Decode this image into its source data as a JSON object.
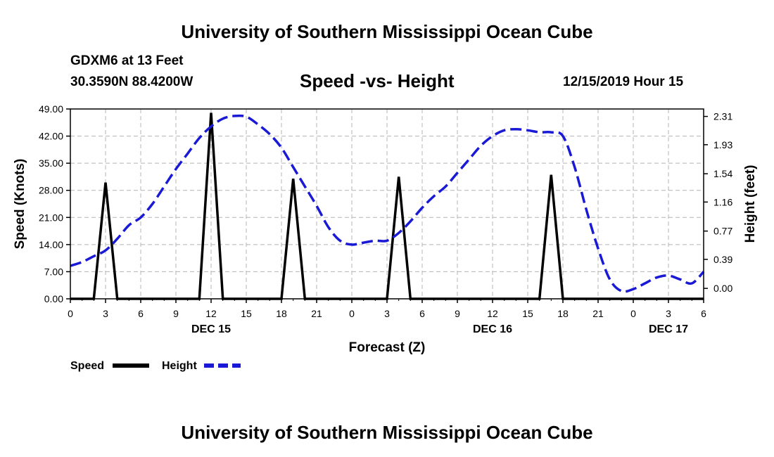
{
  "header": {
    "title": "University of Southern Mississippi Ocean Cube",
    "station": "GDXM6 at 13 Feet",
    "coords": "30.3590N 88.4200W",
    "chart_title": "Speed -vs- Height",
    "date_label": "12/15/2019 Hour 15"
  },
  "footer": {
    "title": "University of Southern Mississippi Ocean Cube"
  },
  "colors": {
    "speed": "#000000",
    "height": "#1a1ad6",
    "grid": "#b4b4b4"
  },
  "chart_data": {
    "type": "line",
    "title": "Speed -vs- Height",
    "xlabel": "Forecast (Z)",
    "ylabel": "Speed (Knots)",
    "ylabel_right": "Height (feet)",
    "xlim": [
      0,
      54
    ],
    "ylim": [
      0,
      49
    ],
    "ylim_right": [
      -0.14,
      2.41
    ],
    "x_ticks": [
      0,
      3,
      6,
      9,
      12,
      15,
      18,
      21,
      24,
      27,
      30,
      33,
      36,
      39,
      42,
      45,
      48,
      51,
      54
    ],
    "x_tick_labels": [
      "0",
      "3",
      "6",
      "9",
      "12",
      "15",
      "18",
      "21",
      "0",
      "3",
      "6",
      "9",
      "12",
      "15",
      "18",
      "21",
      "0",
      "3",
      "6"
    ],
    "day_labels": [
      {
        "x": 12,
        "label": "DEC 15"
      },
      {
        "x": 36,
        "label": "DEC 16"
      },
      {
        "x": 51,
        "label": "DEC 17"
      }
    ],
    "y_ticks": [
      0,
      7,
      14,
      21,
      28,
      35,
      42,
      49
    ],
    "y_tick_labels": [
      "0.00",
      "7.00",
      "14.00",
      "21.00",
      "28.00",
      "35.00",
      "42.00",
      "49.00"
    ],
    "y_right_ticks": [
      0.0,
      0.39,
      0.77,
      1.16,
      1.54,
      1.93,
      2.31
    ],
    "y_right_tick_labels": [
      "0.00",
      "0.39",
      "0.77",
      "1.16",
      "1.54",
      "1.93",
      "2.31"
    ],
    "grid": true,
    "legend": [
      {
        "label": "Speed",
        "style": "solid"
      },
      {
        "label": "Height",
        "style": "dashed"
      }
    ],
    "series": [
      {
        "name": "Speed",
        "axis": "left",
        "x": [
          0,
          2,
          3,
          4,
          11,
          12,
          13,
          18,
          19,
          20,
          27,
          28,
          29,
          40,
          41,
          42,
          54
        ],
        "values": [
          0,
          0,
          30,
          0,
          0,
          48,
          0,
          0,
          31,
          0,
          0,
          31.5,
          0,
          0,
          32,
          0,
          0
        ]
      },
      {
        "name": "Height",
        "axis": "left",
        "x": [
          0,
          1,
          2,
          3,
          4,
          5,
          6,
          7,
          8,
          9,
          10,
          11,
          12,
          13,
          14,
          15,
          16,
          17,
          18,
          19,
          20,
          21,
          22,
          23,
          24,
          25,
          26,
          27,
          28,
          29,
          30,
          31,
          32,
          33,
          34,
          35,
          36,
          37,
          38,
          39,
          40,
          41,
          42,
          43,
          44,
          45,
          46,
          47,
          48,
          49,
          50,
          51,
          52,
          53,
          54
        ],
        "values": [
          8.5,
          9.5,
          11,
          12.5,
          15.5,
          19,
          21,
          24.5,
          29,
          33.5,
          37.5,
          41.5,
          44.5,
          46.5,
          47.2,
          47,
          45,
          42.5,
          39,
          34,
          29,
          24,
          18.5,
          15,
          14,
          14.5,
          15,
          15,
          17,
          20,
          23.5,
          26.5,
          29,
          32.5,
          36,
          39.5,
          42,
          43.5,
          43.8,
          43.5,
          43,
          43,
          42,
          34,
          23,
          13,
          5,
          2,
          2.5,
          4,
          5.5,
          6,
          5,
          4,
          7
        ]
      }
    ]
  }
}
